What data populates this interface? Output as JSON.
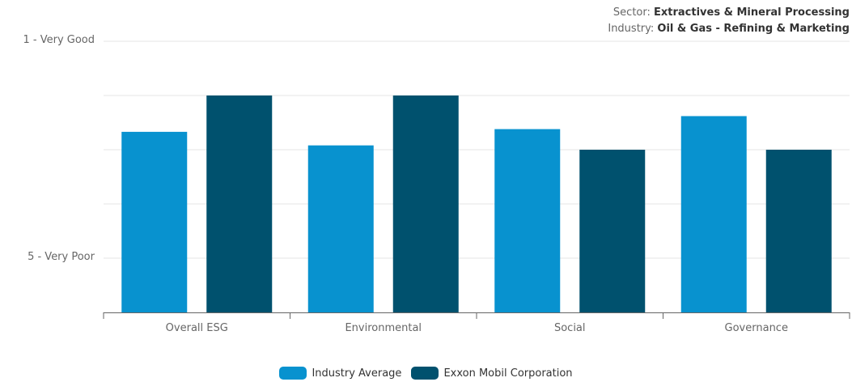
{
  "header": {
    "sector_label": "Sector:",
    "sector_value": "Extractives & Mineral Processing",
    "industry_label": "Industry:",
    "industry_value": "Oil & Gas - Refining & Marketing"
  },
  "chart_data": {
    "type": "bar",
    "categories": [
      "Overall ESG",
      "Environmental",
      "Social",
      "Governance"
    ],
    "series": [
      {
        "name": "Industry Average",
        "color": "#0892CF",
        "values": [
          2.67,
          2.92,
          2.62,
          2.38
        ]
      },
      {
        "name": "Exxon Mobil Corporation",
        "color": "#00516E",
        "values": [
          2.0,
          2.0,
          3.0,
          3.0
        ]
      }
    ],
    "ytick_labels": [
      {
        "value": 1,
        "label": "1 - Very Good"
      },
      {
        "value": 5,
        "label": "5 - Very Poor"
      }
    ],
    "ylim": [
      1,
      6
    ],
    "y_inverted": true,
    "grid": true,
    "legend": "bottom-center"
  }
}
